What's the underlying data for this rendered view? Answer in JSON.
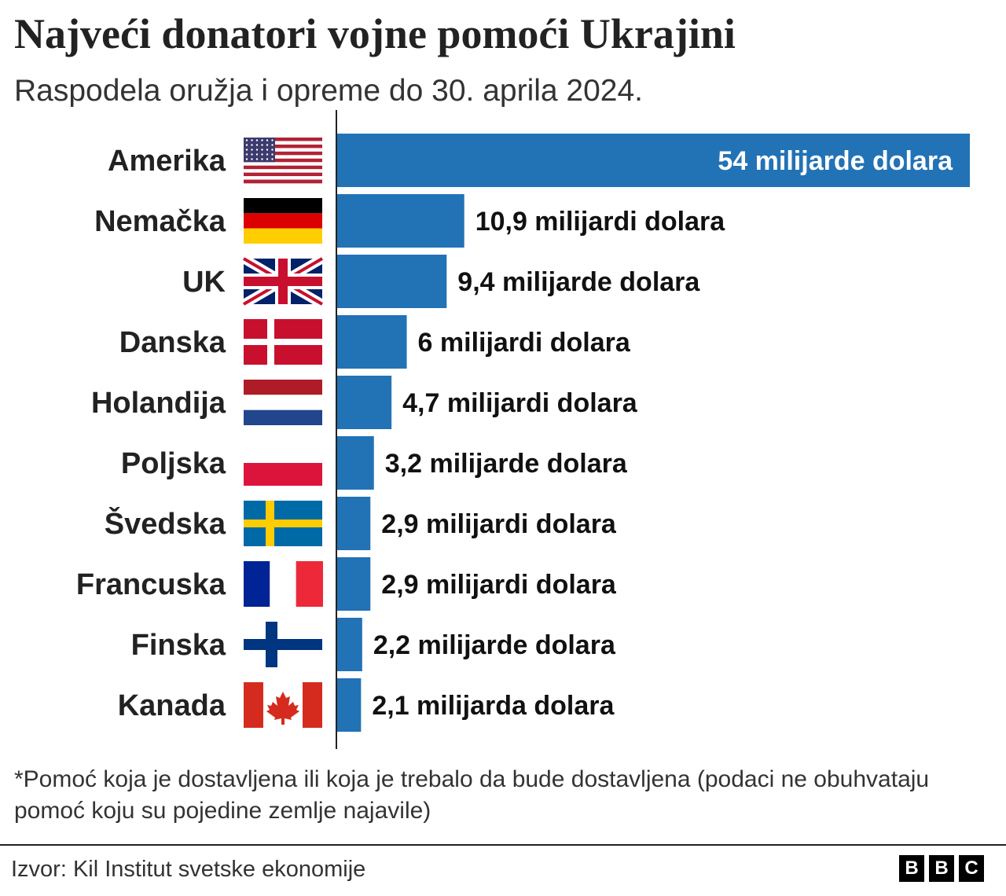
{
  "title": "Najveći donatori vojne pomoći Ukrajini",
  "subtitle": "Raspodela oružja i opreme do 30. aprila 2024.",
  "chart_data": {
    "type": "bar",
    "orientation": "horizontal",
    "categories": [
      "Amerika",
      "Nemačka",
      "UK",
      "Danska",
      "Holandija",
      "Poljska",
      "Švedska",
      "Francuska",
      "Finska",
      "Kanada"
    ],
    "flags": [
      "us-flag",
      "germany-flag",
      "uk-flag",
      "denmark-flag",
      "netherlands-flag",
      "poland-flag",
      "sweden-flag",
      "france-flag",
      "finland-flag",
      "canada-flag"
    ],
    "values": [
      54,
      10.9,
      9.4,
      6,
      4.7,
      3.2,
      2.9,
      2.9,
      2.2,
      2.1
    ],
    "data_labels": [
      "54 milijarde dolara",
      "10,9 milijardi dolara",
      "9,4 milijarde dolara",
      "6 milijardi dolara",
      "4,7 milijardi dolara",
      "3,2 milijarde dolara",
      "2,9 milijardi dolara",
      "2,9 milijardi dolara",
      "2,2 milijarde dolara",
      "2,1 milijarda dolara"
    ],
    "unit": "milijarde dolara",
    "xlim": [
      0,
      54
    ],
    "grid": false,
    "bar_color": "#2272b6"
  },
  "note": "*Pomoć koja je dostavljena ili koja je trebalo da bude dostavljena (podaci ne obuhvataju pomoć koju su pojedine zemlje najavile)",
  "source": "Izvor: Kil Institut svetske ekonomije",
  "logo": [
    "B",
    "B",
    "C"
  ]
}
